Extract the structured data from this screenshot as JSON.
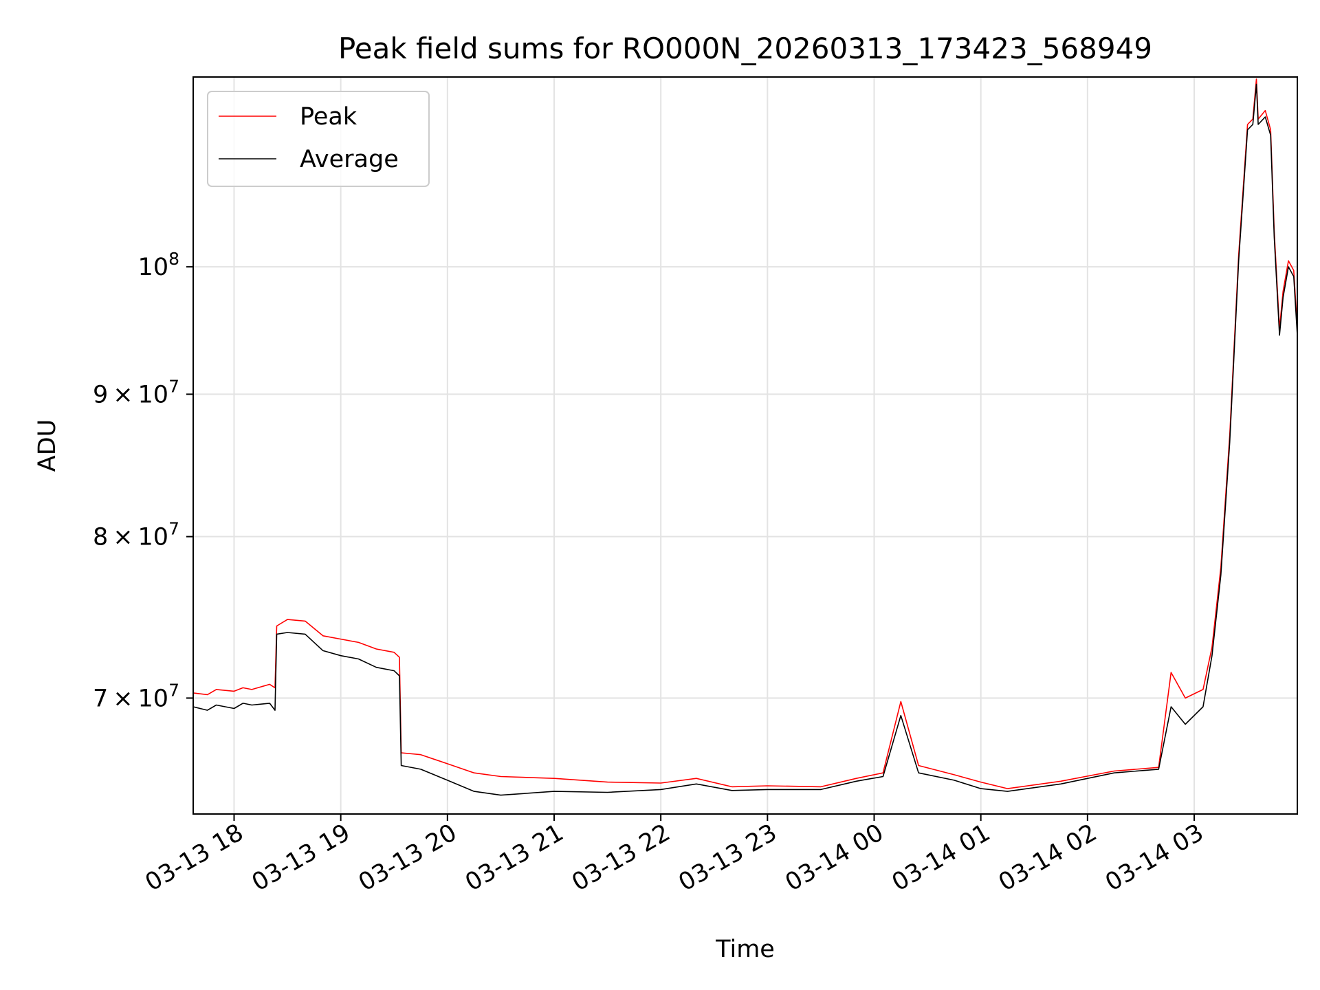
{
  "chart_data": {
    "type": "line",
    "title": "Peak field sums for RO000N_20260313_173423_568949",
    "xlabel": "Time",
    "ylabel": "ADU",
    "x_type": "datetime",
    "x_tick_labels": [
      "03-13 18",
      "03-13 19",
      "03-13 20",
      "03-13 21",
      "03-13 22",
      "03-13 23",
      "03-14 00",
      "03-14 01",
      "03-14 02",
      "03-14 03"
    ],
    "x_ticks": [
      "2026-03-13 18:00",
      "2026-03-13 19:00",
      "2026-03-13 20:00",
      "2026-03-13 21:00",
      "2026-03-13 22:00",
      "2026-03-13 23:00",
      "2026-03-14 00:00",
      "2026-03-14 01:00",
      "2026-03-14 02:00",
      "2026-03-14 03:00"
    ],
    "xlim": [
      "2026-03-13 17:37",
      "2026-03-14 03:58"
    ],
    "y_scale": "log",
    "ylim": [
      63600000,
      117000000
    ],
    "y_ticks": [
      70000000,
      80000000,
      90000000,
      100000000
    ],
    "y_tick_labels": [
      {
        "mantissa": "7",
        "times": "×",
        "base": "10",
        "exp": "7"
      },
      {
        "mantissa": "8",
        "times": "×",
        "base": "10",
        "exp": "7"
      },
      {
        "mantissa": "9",
        "times": "×",
        "base": "10",
        "exp": "7"
      },
      {
        "mantissa": "",
        "times": "",
        "base": "10",
        "exp": "8"
      }
    ],
    "grid": true,
    "legend_position": "upper-left",
    "series": [
      {
        "name": "Peak",
        "color": "#ff0000",
        "points": [
          [
            "2026-03-13 17:37",
            70300000
          ],
          [
            "2026-03-13 17:45",
            70200000
          ],
          [
            "2026-03-13 17:50",
            70500000
          ],
          [
            "2026-03-13 18:00",
            70400000
          ],
          [
            "2026-03-13 18:05",
            70600000
          ],
          [
            "2026-03-13 18:10",
            70500000
          ],
          [
            "2026-03-13 18:20",
            70800000
          ],
          [
            "2026-03-13 18:23",
            70600000
          ],
          [
            "2026-03-13 18:24",
            74300000
          ],
          [
            "2026-03-13 18:30",
            74700000
          ],
          [
            "2026-03-13 18:40",
            74600000
          ],
          [
            "2026-03-13 18:50",
            73700000
          ],
          [
            "2026-03-13 19:00",
            73500000
          ],
          [
            "2026-03-13 19:10",
            73300000
          ],
          [
            "2026-03-13 19:20",
            72900000
          ],
          [
            "2026-03-13 19:30",
            72700000
          ],
          [
            "2026-03-13 19:33",
            72400000
          ],
          [
            "2026-03-13 19:34",
            66900000
          ],
          [
            "2026-03-13 19:45",
            66800000
          ],
          [
            "2026-03-13 20:00",
            66300000
          ],
          [
            "2026-03-13 20:15",
            65800000
          ],
          [
            "2026-03-13 20:30",
            65600000
          ],
          [
            "2026-03-13 21:00",
            65500000
          ],
          [
            "2026-03-13 21:30",
            65300000
          ],
          [
            "2026-03-13 22:00",
            65250000
          ],
          [
            "2026-03-13 22:20",
            65500000
          ],
          [
            "2026-03-13 22:40",
            65050000
          ],
          [
            "2026-03-13 23:00",
            65100000
          ],
          [
            "2026-03-13 23:30",
            65050000
          ],
          [
            "2026-03-13 23:50",
            65500000
          ],
          [
            "2026-03-14 00:05",
            65800000
          ],
          [
            "2026-03-14 00:15",
            69800000
          ],
          [
            "2026-03-14 00:25",
            66200000
          ],
          [
            "2026-03-14 00:45",
            65700000
          ],
          [
            "2026-03-14 01:00",
            65300000
          ],
          [
            "2026-03-14 01:15",
            64950000
          ],
          [
            "2026-03-14 01:45",
            65350000
          ],
          [
            "2026-03-14 02:15",
            65900000
          ],
          [
            "2026-03-14 02:40",
            66100000
          ],
          [
            "2026-03-14 02:47",
            71500000
          ],
          [
            "2026-03-14 02:55",
            70000000
          ],
          [
            "2026-03-14 03:05",
            70500000
          ],
          [
            "2026-03-14 03:10",
            73000000
          ],
          [
            "2026-03-14 03:15",
            78000000
          ],
          [
            "2026-03-14 03:20",
            87000000
          ],
          [
            "2026-03-14 03:25",
            101000000
          ],
          [
            "2026-03-14 03:30",
            112500000
          ],
          [
            "2026-03-14 03:33",
            113000000
          ],
          [
            "2026-03-14 03:35",
            116800000
          ],
          [
            "2026-03-14 03:36",
            113000000
          ],
          [
            "2026-03-14 03:40",
            113800000
          ],
          [
            "2026-03-14 03:43",
            112000000
          ],
          [
            "2026-03-14 03:45",
            103000000
          ],
          [
            "2026-03-14 03:48",
            95000000
          ],
          [
            "2026-03-14 03:50",
            98000000
          ],
          [
            "2026-03-14 03:53",
            100500000
          ],
          [
            "2026-03-14 03:56",
            99700000
          ],
          [
            "2026-03-14 03:58",
            95000000
          ]
        ]
      },
      {
        "name": "Average",
        "color": "#000000",
        "points": [
          [
            "2026-03-13 17:37",
            69500000
          ],
          [
            "2026-03-13 17:45",
            69300000
          ],
          [
            "2026-03-13 17:50",
            69600000
          ],
          [
            "2026-03-13 18:00",
            69400000
          ],
          [
            "2026-03-13 18:05",
            69700000
          ],
          [
            "2026-03-13 18:10",
            69600000
          ],
          [
            "2026-03-13 18:20",
            69700000
          ],
          [
            "2026-03-13 18:23",
            69300000
          ],
          [
            "2026-03-13 18:24",
            73800000
          ],
          [
            "2026-03-13 18:30",
            73900000
          ],
          [
            "2026-03-13 18:40",
            73800000
          ],
          [
            "2026-03-13 18:50",
            72800000
          ],
          [
            "2026-03-13 19:00",
            72500000
          ],
          [
            "2026-03-13 19:10",
            72300000
          ],
          [
            "2026-03-13 19:20",
            71800000
          ],
          [
            "2026-03-13 19:30",
            71600000
          ],
          [
            "2026-03-13 19:33",
            71300000
          ],
          [
            "2026-03-13 19:34",
            66200000
          ],
          [
            "2026-03-13 19:45",
            66000000
          ],
          [
            "2026-03-13 20:00",
            65400000
          ],
          [
            "2026-03-13 20:15",
            64800000
          ],
          [
            "2026-03-13 20:30",
            64600000
          ],
          [
            "2026-03-13 21:00",
            64800000
          ],
          [
            "2026-03-13 21:30",
            64750000
          ],
          [
            "2026-03-13 22:00",
            64900000
          ],
          [
            "2026-03-13 22:20",
            65200000
          ],
          [
            "2026-03-13 22:40",
            64850000
          ],
          [
            "2026-03-13 23:00",
            64900000
          ],
          [
            "2026-03-13 23:30",
            64900000
          ],
          [
            "2026-03-13 23:50",
            65350000
          ],
          [
            "2026-03-14 00:05",
            65600000
          ],
          [
            "2026-03-14 00:15",
            69000000
          ],
          [
            "2026-03-14 00:25",
            65800000
          ],
          [
            "2026-03-14 00:45",
            65400000
          ],
          [
            "2026-03-14 01:00",
            64950000
          ],
          [
            "2026-03-14 01:15",
            64800000
          ],
          [
            "2026-03-14 01:45",
            65200000
          ],
          [
            "2026-03-14 02:15",
            65800000
          ],
          [
            "2026-03-14 02:40",
            66000000
          ],
          [
            "2026-03-14 02:47",
            69500000
          ],
          [
            "2026-03-14 02:55",
            68500000
          ],
          [
            "2026-03-14 03:05",
            69500000
          ],
          [
            "2026-03-14 03:10",
            72500000
          ],
          [
            "2026-03-14 03:15",
            77500000
          ],
          [
            "2026-03-14 03:20",
            86500000
          ],
          [
            "2026-03-14 03:25",
            100500000
          ],
          [
            "2026-03-14 03:30",
            112000000
          ],
          [
            "2026-03-14 03:33",
            112500000
          ],
          [
            "2026-03-14 03:35",
            116300000
          ],
          [
            "2026-03-14 03:36",
            112500000
          ],
          [
            "2026-03-14 03:40",
            113200000
          ],
          [
            "2026-03-14 03:43",
            111500000
          ],
          [
            "2026-03-14 03:45",
            102500000
          ],
          [
            "2026-03-14 03:48",
            94500000
          ],
          [
            "2026-03-14 03:50",
            97500000
          ],
          [
            "2026-03-14 03:53",
            100000000
          ],
          [
            "2026-03-14 03:56",
            99200000
          ],
          [
            "2026-03-14 03:58",
            94500000
          ]
        ]
      }
    ]
  }
}
